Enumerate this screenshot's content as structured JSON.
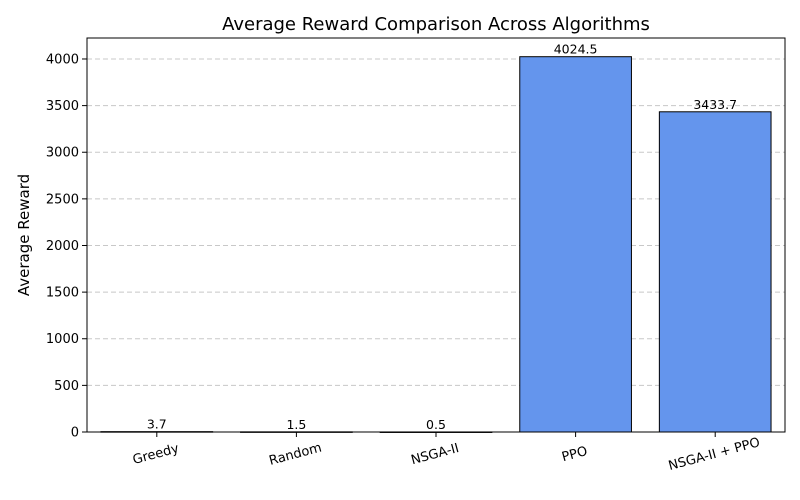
{
  "chart_data": {
    "type": "bar",
    "title": "Average Reward Comparison Across Algorithms",
    "xlabel": "",
    "ylabel": "Average Reward",
    "categories": [
      "Greedy",
      "Random",
      "NSGA-II",
      "PPO",
      "NSGA-II + PPO"
    ],
    "values": [
      3.7,
      1.5,
      0.5,
      4024.5,
      3433.7
    ],
    "data_labels": [
      "3.7",
      "1.5",
      "0.5",
      "4024.5",
      "3433.7"
    ],
    "ylim": [
      0,
      4225
    ],
    "yticks": [
      0,
      500,
      1000,
      1500,
      2000,
      2500,
      3000,
      3500,
      4000
    ],
    "grid": "y",
    "legend": "none",
    "bar_color": "#6495ED",
    "bar_edge_color": "#000000",
    "grid_color": "#c8c8c8"
  }
}
